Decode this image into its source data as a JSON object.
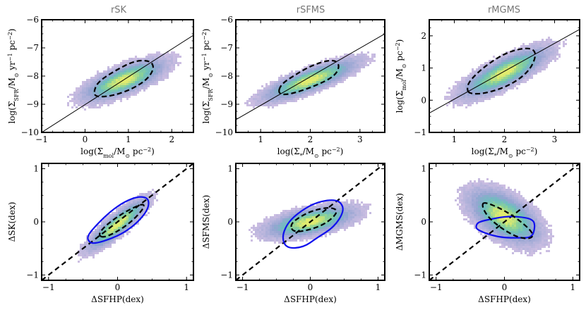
{
  "figure": {
    "titles": [
      "rSK",
      "rSFMS",
      "rMGMS"
    ]
  },
  "chart_data": [
    {
      "type": "scatter",
      "panel": "top-left",
      "title": "rSK",
      "xlabel": "log(Σmol/M⊙ pc⁻²)",
      "ylabel": "log(ΣSFR/M⊙ yr⁻¹ pc⁻²)",
      "xlim": [
        -1,
        2.5
      ],
      "ylim": [
        -10,
        -6
      ],
      "xticks": [
        -1,
        0,
        1,
        2
      ],
      "yticks": [
        -10,
        -9,
        -8,
        -7,
        -6
      ],
      "xtick_labels": [
        "−1",
        "0",
        "1",
        "2"
      ],
      "ytick_labels": [
        "−10",
        "−9",
        "−8",
        "−7",
        "−6"
      ],
      "density": {
        "center": [
          0.9,
          -8.15
        ],
        "sx": 0.55,
        "sy": 0.42,
        "rho": 0.72
      },
      "fit_line": {
        "x": [
          -1,
          2.5
        ],
        "y": [
          -10.0,
          -6.55
        ]
      },
      "contours": [
        {
          "style": "black-dashed",
          "points": [
            [
              0.25,
              -8.75
            ],
            [
              0.65,
              -8.7
            ],
            [
              1.1,
              -8.45
            ],
            [
              1.45,
              -8.1
            ],
            [
              1.6,
              -7.7
            ],
            [
              1.5,
              -7.45
            ],
            [
              1.15,
              -7.45
            ],
            [
              0.7,
              -7.8
            ],
            [
              0.3,
              -8.2
            ],
            [
              0.2,
              -8.55
            ]
          ]
        }
      ]
    },
    {
      "type": "scatter",
      "panel": "top-middle",
      "title": "rSFMS",
      "xlabel": "log(Σ*/M⊙ pc⁻²)",
      "ylabel": "log(ΣSFR/M⊙ yr⁻¹ pc⁻²)",
      "xlim": [
        0.5,
        3.5
      ],
      "ylim": [
        -10,
        -6
      ],
      "xticks": [
        1,
        2,
        3
      ],
      "yticks": [
        -10,
        -9,
        -8,
        -7,
        -6
      ],
      "xtick_labels": [
        "1",
        "2",
        "3"
      ],
      "ytick_labels": [
        "−10",
        "−9",
        "−8",
        "−7",
        "−6"
      ],
      "density": {
        "center": [
          2.0,
          -8.15
        ],
        "sx": 0.55,
        "sy": 0.42,
        "rho": 0.82
      },
      "fit_line": {
        "x": [
          0.5,
          3.5
        ],
        "y": [
          -9.55,
          -6.5
        ]
      },
      "contours": [
        {
          "style": "black-dashed",
          "points": [
            [
              1.35,
              -8.65
            ],
            [
              1.6,
              -8.65
            ],
            [
              2.1,
              -8.35
            ],
            [
              2.5,
              -8.0
            ],
            [
              2.6,
              -7.6
            ],
            [
              2.45,
              -7.4
            ],
            [
              2.05,
              -7.6
            ],
            [
              1.7,
              -7.95
            ],
            [
              1.4,
              -8.3
            ]
          ]
        }
      ]
    },
    {
      "type": "scatter",
      "panel": "top-right",
      "title": "rMGMS",
      "xlabel": "log(Σ*/M⊙ pc⁻²)",
      "ylabel": "log(Σmol/M⊙ pc⁻²)",
      "xlim": [
        0.5,
        3.5
      ],
      "ylim": [
        -1,
        2.5
      ],
      "xticks": [
        1,
        2,
        3
      ],
      "yticks": [
        -1,
        0,
        1,
        2
      ],
      "xtick_labels": [
        "1",
        "2",
        "3"
      ],
      "ytick_labels": [
        "−1",
        "0",
        "1",
        "2"
      ],
      "density": {
        "center": [
          2.0,
          0.85
        ],
        "sx": 0.5,
        "sy": 0.45,
        "rho": 0.8
      },
      "fit_line": {
        "x": [
          0.5,
          3.5
        ],
        "y": [
          -0.4,
          2.2
        ]
      },
      "contours": [
        {
          "style": "black-dashed",
          "points": [
            [
              1.3,
              0.2
            ],
            [
              1.6,
              0.2
            ],
            [
              2.1,
              0.45
            ],
            [
              2.5,
              0.9
            ],
            [
              2.65,
              1.45
            ],
            [
              2.5,
              1.65
            ],
            [
              2.05,
              1.5
            ],
            [
              1.6,
              1.05
            ],
            [
              1.3,
              0.6
            ],
            [
              1.25,
              0.35
            ]
          ]
        }
      ]
    },
    {
      "type": "scatter",
      "panel": "bottom-left",
      "xlabel": "ΔSFHP(dex)",
      "ylabel": "ΔSK(dex)",
      "xlim": [
        -1.1,
        1.1
      ],
      "ylim": [
        -1.1,
        1.1
      ],
      "xticks": [
        -1,
        0,
        1
      ],
      "yticks": [
        -1,
        0,
        1
      ],
      "xtick_labels": [
        "−1",
        "0",
        "1"
      ],
      "ytick_labels": [
        "−1",
        "0",
        "1"
      ],
      "density": {
        "center": [
          0.0,
          -0.05
        ],
        "sx": 0.25,
        "sy": 0.28,
        "rho": 0.88
      },
      "one_to_one": {
        "x": [
          -1.1,
          1.1
        ],
        "y": [
          -1.1,
          1.1
        ]
      },
      "contours": [
        {
          "style": "blue-solid",
          "points": [
            [
              -0.3,
              -0.4
            ],
            [
              -0.1,
              -0.32
            ],
            [
              0.1,
              -0.2
            ],
            [
              0.3,
              0.0
            ],
            [
              0.45,
              0.25
            ],
            [
              0.45,
              0.45
            ],
            [
              0.3,
              0.48
            ],
            [
              0.1,
              0.38
            ],
            [
              -0.1,
              0.2
            ],
            [
              -0.3,
              -0.05
            ],
            [
              -0.45,
              -0.28
            ],
            [
              -0.4,
              -0.4
            ]
          ]
        },
        {
          "style": "black-dashed",
          "points": [
            [
              -0.2,
              -0.3
            ],
            [
              0.0,
              -0.18
            ],
            [
              0.2,
              0.0
            ],
            [
              0.38,
              0.25
            ],
            [
              0.38,
              0.35
            ],
            [
              0.2,
              0.25
            ],
            [
              0.0,
              0.1
            ],
            [
              -0.2,
              -0.1
            ],
            [
              -0.28,
              -0.25
            ]
          ]
        }
      ]
    },
    {
      "type": "scatter",
      "panel": "bottom-middle",
      "xlabel": "ΔSFHP(dex)",
      "ylabel": "ΔSFMS(dex)",
      "xlim": [
        -1.1,
        1.1
      ],
      "ylim": [
        -1.1,
        1.1
      ],
      "xticks": [
        -1,
        0,
        1
      ],
      "yticks": [
        -1,
        0,
        1
      ],
      "xtick_labels": [
        "−1",
        "0",
        "1"
      ],
      "ytick_labels": [
        "−1",
        "0",
        "1"
      ],
      "density": {
        "center": [
          0.0,
          0.0
        ],
        "sx": 0.38,
        "sy": 0.17,
        "rho": 0.55
      },
      "one_to_one": {
        "x": [
          -1.1,
          1.1
        ],
        "y": [
          -1.1,
          1.1
        ]
      },
      "contours": [
        {
          "style": "blue-solid",
          "points": [
            [
              -0.35,
              -0.5
            ],
            [
              -0.1,
              -0.48
            ],
            [
              0.1,
              -0.3
            ],
            [
              0.35,
              -0.1
            ],
            [
              0.5,
              0.2
            ],
            [
              0.45,
              0.38
            ],
            [
              0.3,
              0.42
            ],
            [
              0.05,
              0.35
            ],
            [
              -0.2,
              0.15
            ],
            [
              -0.35,
              -0.05
            ],
            [
              -0.42,
              -0.3
            ]
          ]
        },
        {
          "style": "black-dashed",
          "points": [
            [
              -0.25,
              -0.2
            ],
            [
              0.0,
              -0.15
            ],
            [
              0.25,
              -0.02
            ],
            [
              0.42,
              0.2
            ],
            [
              0.3,
              0.28
            ],
            [
              0.05,
              0.22
            ],
            [
              -0.15,
              0.1
            ],
            [
              -0.3,
              -0.05
            ]
          ]
        }
      ]
    },
    {
      "type": "scatter",
      "panel": "bottom-right",
      "xlabel": "ΔSFHP(dex)",
      "ylabel": "ΔMGMS(dex)",
      "xlim": [
        -1.1,
        1.1
      ],
      "ylim": [
        -1.1,
        1.1
      ],
      "xticks": [
        -1,
        0,
        1
      ],
      "yticks": [
        -1,
        0,
        1
      ],
      "xtick_labels": [
        "−1",
        "0",
        "1"
      ],
      "ytick_labels": [
        "−1",
        "0",
        "1"
      ],
      "density": {
        "center": [
          0.0,
          0.1
        ],
        "sx": 0.3,
        "sy": 0.3,
        "rho": -0.55
      },
      "one_to_one": {
        "x": [
          -1.1,
          1.1
        ],
        "y": [
          -1.1,
          1.1
        ]
      },
      "contours": [
        {
          "style": "blue-solid",
          "points": [
            [
              -0.4,
              -0.15
            ],
            [
              -0.2,
              -0.25
            ],
            [
              0.0,
              -0.3
            ],
            [
              0.2,
              -0.3
            ],
            [
              0.4,
              -0.3
            ],
            [
              0.45,
              -0.1
            ],
            [
              0.42,
              0.05
            ],
            [
              0.2,
              0.1
            ],
            [
              0.0,
              0.1
            ],
            [
              -0.2,
              0.05
            ],
            [
              -0.38,
              0.0
            ],
            [
              -0.42,
              -0.08
            ]
          ]
        },
        {
          "style": "black-dashed",
          "points": [
            [
              -0.3,
              0.38
            ],
            [
              -0.05,
              0.25
            ],
            [
              0.2,
              0.05
            ],
            [
              0.42,
              -0.2
            ],
            [
              0.4,
              -0.32
            ],
            [
              0.2,
              -0.3
            ],
            [
              -0.05,
              -0.12
            ],
            [
              -0.25,
              0.1
            ],
            [
              -0.33,
              0.3
            ]
          ]
        }
      ]
    }
  ]
}
